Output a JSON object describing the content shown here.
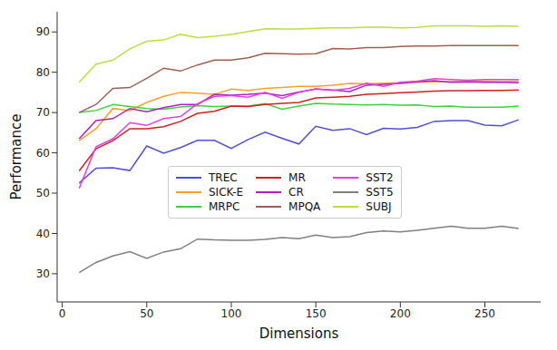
{
  "chart_data": {
    "type": "line",
    "x_label": "Dimensions",
    "y_label": "Performance",
    "x": [
      10,
      20,
      30,
      40,
      50,
      60,
      70,
      80,
      90,
      100,
      110,
      120,
      130,
      140,
      150,
      160,
      170,
      180,
      190,
      200,
      210,
      220,
      230,
      240,
      250,
      260,
      270
    ],
    "xlim": [
      -3,
      283
    ],
    "xticks": [
      0,
      50,
      100,
      150,
      200,
      250
    ],
    "ylim": [
      23,
      95
    ],
    "yticks": [
      30,
      40,
      50,
      60,
      70,
      80,
      90
    ],
    "grid": false,
    "legend": "center",
    "series": [
      {
        "name": "TREC",
        "color": "#5050d0",
        "values": [
          52.5,
          56.2,
          56.3,
          55.6,
          61.7,
          59.9,
          61.3,
          63.1,
          63.1,
          61.1,
          63.3,
          65.1,
          63.6,
          62.2,
          66.6,
          65.6,
          66.0,
          64.5,
          66.1,
          65.9,
          66.3,
          67.8,
          68.0,
          68.0,
          66.9,
          66.7,
          68.2
        ]
      },
      {
        "name": "SICK-E",
        "color": "#f5a030",
        "values": [
          63,
          66,
          71,
          70.5,
          72.5,
          74,
          75,
          74.8,
          74.5,
          75.8,
          75.5,
          76,
          76.2,
          76.5,
          76.5,
          76.8,
          77.2,
          77.1,
          77.3,
          77.4,
          77.5,
          77.6,
          77.7,
          77.8,
          77.8,
          77.7,
          77.8
        ]
      },
      {
        "name": "MRPC",
        "color": "#40d040",
        "values": [
          70,
          70.5,
          72,
          71.5,
          71,
          70.8,
          71.4,
          71.7,
          71.5,
          71.6,
          71.6,
          72.2,
          70.8,
          71.6,
          72.3,
          72.1,
          72.0,
          71.9,
          72.0,
          71.8,
          71.9,
          71.5,
          71.6,
          71.3,
          71.3,
          71.3,
          71.6
        ]
      },
      {
        "name": "MR",
        "color": "#d02020",
        "values": [
          55.5,
          61,
          63,
          66,
          66,
          66.5,
          67.8,
          69.8,
          70.3,
          71.6,
          71.5,
          72,
          72.3,
          72.5,
          73.6,
          73.8,
          74,
          74.5,
          74.7,
          74.9,
          75.1,
          75.3,
          75.4,
          75.4,
          75.5,
          75.5,
          75.6
        ]
      },
      {
        "name": "CR",
        "color": "#b020c0",
        "values": [
          63.5,
          68,
          68.5,
          71,
          70.2,
          71.2,
          72,
          72,
          74.5,
          74.3,
          74.5,
          74.8,
          74.2,
          75.1,
          75.8,
          75.6,
          75.2,
          76.8,
          77.0,
          77.2,
          77.6,
          77.9,
          77.5,
          77.6,
          77.5,
          77.5,
          77.4
        ]
      },
      {
        "name": "MPQA",
        "color": "#a06050",
        "values": [
          70,
          72,
          76,
          76.2,
          78.5,
          81,
          80.3,
          81.8,
          83,
          83,
          83.6,
          84.7,
          84.6,
          84.5,
          84.6,
          85.9,
          85.8,
          86.1,
          86.1,
          86.4,
          86.5,
          86.5,
          86.6,
          86.6,
          86.6,
          86.6,
          86.6
        ]
      },
      {
        "name": "SST2",
        "color": "#e040e0",
        "values": [
          51.2,
          61.5,
          63.5,
          67.5,
          66.8,
          68.5,
          69,
          72.2,
          74,
          74.2,
          73.8,
          75,
          73.5,
          75,
          75.9,
          75.5,
          76,
          77.3,
          76.5,
          77.5,
          77.8,
          78.4,
          78.2,
          78.0,
          78.2,
          78.2,
          78.2
        ]
      },
      {
        "name": "SST5",
        "color": "#808080",
        "values": [
          30.3,
          32.8,
          34.4,
          35.5,
          33.8,
          35.4,
          36.2,
          38.6,
          38.4,
          38.3,
          38.3,
          38.5,
          39,
          38.7,
          39.6,
          39.0,
          39.2,
          40.2,
          40.6,
          40.4,
          40.8,
          41.3,
          41.8,
          41.3,
          41.3,
          41.8,
          41.2
        ]
      },
      {
        "name": "SUBJ",
        "color": "#b8e040",
        "values": [
          77.5,
          82,
          83,
          85.8,
          87.7,
          88,
          89.4,
          88.6,
          88.9,
          89.4,
          90.1,
          90.8,
          90.7,
          90.7,
          90.9,
          91.0,
          91.0,
          91.2,
          91.2,
          91.0,
          91.1,
          91.5,
          91.5,
          91.5,
          91.4,
          91.5,
          91.4
        ]
      }
    ]
  }
}
